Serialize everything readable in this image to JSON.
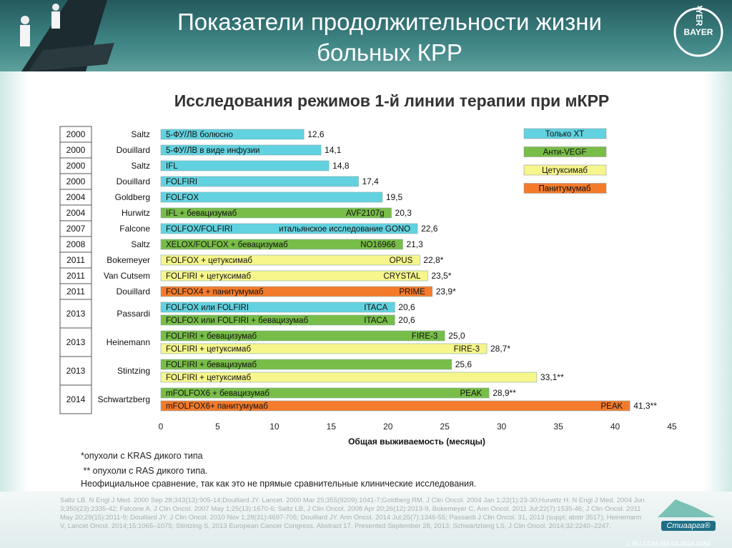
{
  "header": {
    "title_line1": "Показатели продолжительности жизни",
    "title_line2": "больных КРР",
    "logo": "BAYER"
  },
  "chart_data": {
    "type": "bar",
    "orientation": "horizontal",
    "title": "Исследования режимов 1-й линии терапии при мКРР",
    "xlabel": "Общая выживаемость (месяцы)",
    "xlim": [
      0,
      45
    ],
    "xticks": [
      0,
      5,
      10,
      15,
      20,
      25,
      30,
      35,
      40,
      45
    ],
    "series": [
      {
        "name": "Только ХТ",
        "color": "#62d2e0"
      },
      {
        "name": "Анти-VEGF",
        "color": "#78bd48"
      },
      {
        "name": "Цетуксимаб",
        "color": "#f6f68c"
      },
      {
        "name": "Панитумумаб",
        "color": "#f47b2b"
      }
    ],
    "studies": [
      {
        "year": "2000",
        "author": "Saltz",
        "bars": [
          {
            "label": "5-ФУ/ЛВ болюсно",
            "value": 12.6,
            "value_label": "12,6",
            "series": 0
          }
        ]
      },
      {
        "year": "2000",
        "author": "Douillard",
        "bars": [
          {
            "label": "5-ФУ/ЛВ в виде инфузии",
            "value": 14.1,
            "value_label": "14,1",
            "series": 0
          }
        ]
      },
      {
        "year": "2000",
        "author": "Saltz",
        "bars": [
          {
            "label": "IFL",
            "value": 14.8,
            "value_label": "14,8",
            "series": 0
          }
        ]
      },
      {
        "year": "2000",
        "author": "Douillard",
        "bars": [
          {
            "label": "FOLFIRI",
            "value": 17.4,
            "value_label": "17,4",
            "series": 0
          }
        ]
      },
      {
        "year": "2004",
        "author": "Goldberg",
        "bars": [
          {
            "label": "FOLFOX",
            "value": 19.5,
            "value_label": "19,5",
            "series": 0
          }
        ]
      },
      {
        "year": "2004",
        "author": "Hurwitz",
        "bars": [
          {
            "label": "IFL + бевацизумаб",
            "study": "AVF2107g",
            "value": 20.3,
            "value_label": "20,3",
            "series": 1
          }
        ]
      },
      {
        "year": "2007",
        "author": "Falcone",
        "bars": [
          {
            "label": "FOLFOX/FOLFIRI",
            "study": "итальянское исследование GONO",
            "value": 22.6,
            "value_label": "22,6",
            "series": 0
          }
        ]
      },
      {
        "year": "2008",
        "author": "Saltz",
        "bars": [
          {
            "label": "XELOX/FOLFOX + бевацизумаб",
            "study": "NO16966",
            "value": 21.3,
            "value_label": "21,3",
            "series": 1
          }
        ]
      },
      {
        "year": "2011",
        "author": "Bokemeyer",
        "bars": [
          {
            "label": "FOLFOX + цетуксимаб",
            "study": "OPUS",
            "value": 22.8,
            "value_label": "22,8*",
            "series": 2
          }
        ]
      },
      {
        "year": "2011",
        "author": "Van Cutsem",
        "bars": [
          {
            "label": "FOLFIRI + цетуксимаб",
            "study": "CRYSTAL",
            "value": 23.5,
            "value_label": "23,5*",
            "series": 2
          }
        ]
      },
      {
        "year": "2011",
        "author": "Douillard",
        "bars": [
          {
            "label": "FOLFOX4 + панитумумаб",
            "study": "PRIME",
            "value": 23.9,
            "value_label": "23,9*",
            "series": 3
          }
        ]
      },
      {
        "year": "2013",
        "author": "Passardi",
        "bars": [
          {
            "label": "FOLFOX или FOLFIRI",
            "study": "ITACA",
            "value": 20.6,
            "value_label": "20,6",
            "series": 0
          },
          {
            "label": "FOLFOX или FOLFIRI + бевацизумаб",
            "study": "ITACA",
            "value": 20.6,
            "value_label": "20,6",
            "series": 1
          }
        ]
      },
      {
        "year": "2013",
        "author": "Heinemann",
        "bars": [
          {
            "label": "FOLFIRI + бевацизумаб",
            "study": "FIRE-3",
            "value": 25.0,
            "value_label": "25,0",
            "series": 1
          },
          {
            "label": "FOLFIRI + цетуксимаб",
            "study": "FIRE-3",
            "value": 28.7,
            "value_label": "28,7*",
            "series": 2
          }
        ]
      },
      {
        "year": "2013",
        "author": "Stintzing",
        "bars": [
          {
            "label": "FOLFIRI + бевацизумаб",
            "value": 25.6,
            "value_label": "25,6",
            "series": 1
          },
          {
            "label": "FOLFIRI + цетуксимаб",
            "value": 33.1,
            "value_label": "33,1**",
            "series": 2
          }
        ]
      },
      {
        "year": "2014",
        "author": "Schwartzberg",
        "bars": [
          {
            "label": "mFOLFOX6 + бевацизумаб",
            "study": "PEAK",
            "value": 28.9,
            "value_label": "28,9**",
            "series": 1
          },
          {
            "label": "mFOLFOX6+ панитумумаб",
            "study": "PEAK",
            "value": 41.3,
            "value_label": "41,3**",
            "series": 3
          }
        ]
      }
    ]
  },
  "footnotes": [
    "*опухоли с KRAS дикого типа",
    " ** опухоли с RAS дикого типа.",
    "Неофициальное сравнение, так как это не прямые сравнительные клинические исследования."
  ],
  "references": "Saltz LB. N Engl J Med. 2000 Sep 28;343(13):905-14;Douillard JY. Lancet. 2000 Mar 25;355(9209):1041-7;Goldberg RM. J Clin Oncol. 2004 Jan 1;22(1):23-30;Hurwitz H. N Engl J Med. 2004 Jun 3;350(23):2335-42; Falcone A. J Clin Oncol. 2007 May 1;25(13):1670-6; Saltz LB, J Clin Oncol. 2008 Apr 20;26(12):2013-9, Bokemeyer C, Ann Oncol. 2011 Jul;22(7):1535-46; J Clin Oncol. 2011 May 20;29(15):2011-9; Douillard JY. J Clin Oncol. 2010 Nov 1;28(31):4697-705; Douillard JY. Ann Oncol. 2014 Jul;25(7):1346-55; Passardi J Clin Oncol. 31, 2013 (suppl; abstr 3517); Heinemann V, Lancet Oncol. 2014;15:1065–1075; Stintzing S, 2013 European Cancer Congress. Abstract 17. Presented September 28, 2013; Schwartzberg LS, J Clin Oncol. 2014;32:2240–2247.",
  "brand": "Стиаарга®",
  "code": "L.RU.COM.SM.03.2016.0284"
}
